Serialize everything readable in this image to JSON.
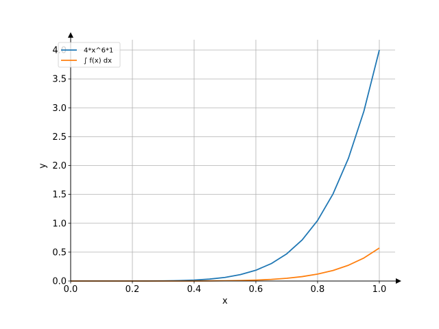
{
  "chart_data": {
    "type": "line",
    "xlabel": "x",
    "ylabel": "y",
    "xlim": [
      0,
      1.05
    ],
    "ylim": [
      0,
      4.2
    ],
    "x_ticks": [
      "0.0",
      "0.2",
      "0.4",
      "0.6",
      "0.8",
      "1.0"
    ],
    "y_ticks": [
      "0.0",
      "0.5",
      "1.0",
      "1.5",
      "2.0",
      "2.5",
      "3.0",
      "3.5",
      "4.0"
    ],
    "grid": true,
    "legend_position": "top-left",
    "x": [
      0.0,
      0.05,
      0.1,
      0.15,
      0.2,
      0.25,
      0.3,
      0.35,
      0.4,
      0.45,
      0.5,
      0.55,
      0.6,
      0.65,
      0.7,
      0.75,
      0.8,
      0.85,
      0.9,
      0.95,
      1.0
    ],
    "series": [
      {
        "name": "4*x^6*1",
        "color": "#1f77b4",
        "values": [
          0.0,
          0.0,
          0.0,
          0.0,
          0.0003,
          0.001,
          0.0029,
          0.0074,
          0.0164,
          0.0332,
          0.0625,
          0.1107,
          0.1866,
          0.3017,
          0.4706,
          0.7119,
          1.0486,
          1.5087,
          2.1258,
          2.9404,
          4.0
        ]
      },
      {
        "name": "∫ f(x) dx",
        "color": "#ff7f0e",
        "values": [
          0.0,
          0.0,
          0.0,
          0.0,
          0.0,
          0.0,
          0.0001,
          0.0004,
          0.0009,
          0.0021,
          0.0045,
          0.0087,
          0.016,
          0.028,
          0.0471,
          0.0763,
          0.1198,
          0.1826,
          0.2733,
          0.399,
          0.5714
        ]
      }
    ]
  }
}
